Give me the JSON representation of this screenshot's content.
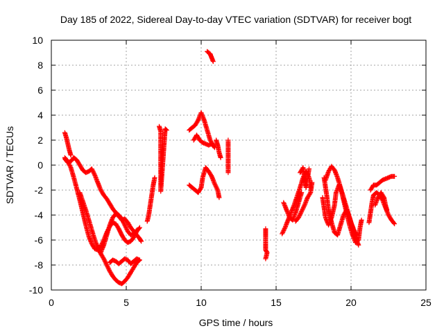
{
  "chart_data": {
    "type": "scatter",
    "title": "Day 185 of 2022, Sidereal Day-to-day VTEC variation (SDTVAR) for receiver bogt",
    "xlabel": "GPS time / hours",
    "ylabel": "SDTVAR / TECUs",
    "xlim": [
      0,
      25
    ],
    "ylim": [
      -10,
      10
    ],
    "xticks": [
      0,
      5,
      10,
      15,
      20,
      25
    ],
    "yticks": [
      -10,
      -8,
      -6,
      -4,
      -2,
      0,
      2,
      4,
      6,
      8,
      10
    ],
    "grid": true,
    "marker": "+",
    "color": "#ff0000",
    "series": [
      {
        "name": "bogt",
        "tracks": [
          [
            [
              0.9,
              2.6
            ],
            [
              1.0,
              2.2
            ],
            [
              1.1,
              1.7
            ],
            [
              1.2,
              1.2
            ],
            [
              1.3,
              0.8
            ]
          ],
          [
            [
              0.9,
              0.6
            ],
            [
              1.1,
              0.3
            ],
            [
              1.3,
              -0.2
            ],
            [
              1.5,
              -1.0
            ],
            [
              1.7,
              -1.9
            ],
            [
              1.9,
              -2.8
            ],
            [
              2.1,
              -3.8
            ],
            [
              2.3,
              -4.8
            ],
            [
              2.5,
              -5.7
            ],
            [
              2.7,
              -6.3
            ],
            [
              2.9,
              -6.7
            ],
            [
              3.1,
              -6.8
            ],
            [
              3.3,
              -6.5
            ],
            [
              3.5,
              -6.0
            ],
            [
              3.7,
              -5.4
            ],
            [
              3.9,
              -4.9
            ],
            [
              4.1,
              -4.6
            ],
            [
              4.3,
              -4.7
            ],
            [
              4.5,
              -5.1
            ],
            [
              4.7,
              -5.6
            ],
            [
              4.9,
              -6.0
            ],
            [
              5.1,
              -6.2
            ],
            [
              5.3,
              -6.1
            ],
            [
              5.5,
              -5.8
            ],
            [
              5.7,
              -5.3
            ],
            [
              5.9,
              -5.0
            ]
          ],
          [
            [
              0.9,
              0.5
            ],
            [
              1.1,
              0.2
            ],
            [
              1.3,
              0.3
            ],
            [
              1.5,
              0.6
            ],
            [
              1.7,
              0.4
            ],
            [
              1.9,
              0.0
            ],
            [
              2.1,
              -0.4
            ],
            [
              2.3,
              -0.6
            ],
            [
              2.5,
              -0.5
            ],
            [
              2.7,
              -0.3
            ],
            [
              2.9,
              -0.8
            ],
            [
              3.1,
              -1.4
            ],
            [
              3.3,
              -2.0
            ],
            [
              3.5,
              -2.4
            ],
            [
              3.7,
              -2.7
            ],
            [
              3.9,
              -3.1
            ],
            [
              4.1,
              -3.5
            ],
            [
              4.3,
              -3.8
            ],
            [
              4.5,
              -4.0
            ],
            [
              4.7,
              -4.3
            ],
            [
              4.9,
              -4.8
            ],
            [
              5.1,
              -5.3
            ],
            [
              5.3,
              -5.6
            ],
            [
              5.5,
              -5.5
            ],
            [
              5.7,
              -5.2
            ]
          ],
          [
            [
              1.9,
              -2.2
            ],
            [
              2.1,
              -2.9
            ],
            [
              2.3,
              -3.6
            ],
            [
              2.5,
              -4.4
            ],
            [
              2.7,
              -5.2
            ],
            [
              2.9,
              -6.0
            ],
            [
              3.1,
              -6.6
            ],
            [
              3.3,
              -7.1
            ],
            [
              3.5,
              -7.5
            ],
            [
              3.7,
              -8.0
            ],
            [
              3.9,
              -8.5
            ],
            [
              4.1,
              -8.9
            ],
            [
              4.3,
              -9.2
            ],
            [
              4.5,
              -9.4
            ],
            [
              4.7,
              -9.5
            ],
            [
              4.9,
              -9.3
            ],
            [
              5.1,
              -9.0
            ],
            [
              5.3,
              -8.6
            ],
            [
              5.5,
              -8.2
            ],
            [
              5.7,
              -7.8
            ],
            [
              5.9,
              -7.6
            ]
          ],
          [
            [
              3.9,
              -7.8
            ],
            [
              4.1,
              -7.6
            ],
            [
              4.3,
              -7.7
            ],
            [
              4.5,
              -7.9
            ],
            [
              4.7,
              -7.7
            ],
            [
              4.9,
              -7.5
            ],
            [
              5.1,
              -7.6
            ],
            [
              5.3,
              -7.9
            ],
            [
              5.5,
              -7.7
            ],
            [
              5.7,
              -7.5
            ],
            [
              5.9,
              -7.6
            ]
          ],
          [
            [
              3.3,
              -7.0
            ],
            [
              3.5,
              -6.4
            ],
            [
              3.7,
              -5.6
            ],
            [
              3.9,
              -4.8
            ],
            [
              4.1,
              -4.2
            ],
            [
              4.3,
              -3.9
            ],
            [
              4.5,
              -4.1
            ],
            [
              4.7,
              -4.4
            ],
            [
              4.9,
              -4.3
            ],
            [
              5.1,
              -4.6
            ],
            [
              5.3,
              -5.0
            ],
            [
              5.5,
              -5.3
            ],
            [
              5.7,
              -5.6
            ],
            [
              5.9,
              -5.9
            ],
            [
              6.0,
              -6.1
            ]
          ],
          [
            [
              6.4,
              -4.5
            ],
            [
              6.5,
              -4.0
            ],
            [
              6.6,
              -3.2
            ],
            [
              6.7,
              -2.4
            ],
            [
              6.8,
              -1.6
            ],
            [
              6.9,
              -1.0
            ]
          ],
          [
            [
              7.2,
              3.1
            ],
            [
              7.3,
              2.7
            ],
            [
              7.3,
              1.6
            ],
            [
              7.3,
              -2.1
            ],
            [
              7.6,
              2.9
            ],
            [
              7.7,
              2.8
            ]
          ],
          [
            [
              9.2,
              2.8
            ],
            [
              9.4,
              3.0
            ],
            [
              9.6,
              3.2
            ],
            [
              9.8,
              3.6
            ],
            [
              10.0,
              4.2
            ],
            [
              10.2,
              3.6
            ],
            [
              10.4,
              2.8
            ],
            [
              10.6,
              2.0
            ],
            [
              10.8,
              1.6
            ]
          ],
          [
            [
              9.2,
              -1.6
            ],
            [
              9.4,
              -1.8
            ],
            [
              9.6,
              -2.0
            ],
            [
              9.8,
              -2.2
            ],
            [
              10.0,
              -1.8
            ],
            [
              10.1,
              -1.0
            ],
            [
              10.3,
              -0.2
            ],
            [
              10.5,
              -0.5
            ],
            [
              10.7,
              -0.9
            ],
            [
              10.9,
              -1.5
            ],
            [
              11.1,
              -2.0
            ],
            [
              11.2,
              -2.6
            ]
          ],
          [
            [
              9.5,
              2.0
            ],
            [
              9.7,
              2.4
            ],
            [
              9.9,
              2.0
            ],
            [
              10.1,
              1.8
            ],
            [
              10.3,
              1.7
            ],
            [
              10.5,
              1.6
            ],
            [
              10.7,
              1.7
            ],
            [
              10.9,
              1.4
            ]
          ],
          [
            [
              10.4,
              9.1
            ],
            [
              10.6,
              8.9
            ],
            [
              10.7,
              8.6
            ],
            [
              10.8,
              8.3
            ]
          ],
          [
            [
              11.0,
              2.0
            ],
            [
              11.1,
              1.6
            ],
            [
              11.2,
              1.0
            ],
            [
              11.3,
              0.6
            ]
          ],
          [
            [
              11.8,
              2.0
            ],
            [
              11.8,
              1.8
            ],
            [
              11.8,
              -0.6
            ]
          ],
          [
            [
              14.3,
              -5.1
            ],
            [
              14.3,
              -5.6
            ],
            [
              14.3,
              -6.2
            ],
            [
              14.3,
              -6.8
            ],
            [
              14.4,
              -7.0
            ],
            [
              14.3,
              -7.5
            ]
          ],
          [
            [
              15.4,
              -5.5
            ],
            [
              15.6,
              -5.0
            ],
            [
              15.8,
              -4.4
            ],
            [
              16.0,
              -3.8
            ],
            [
              16.2,
              -3.2
            ],
            [
              16.4,
              -2.5
            ],
            [
              16.6,
              -1.8
            ],
            [
              16.8,
              -1.0
            ],
            [
              17.0,
              -0.5
            ],
            [
              17.2,
              -1.0
            ],
            [
              17.3,
              -1.8
            ]
          ],
          [
            [
              15.5,
              -3.0
            ],
            [
              15.7,
              -3.6
            ],
            [
              15.9,
              -4.2
            ],
            [
              16.1,
              -4.4
            ],
            [
              16.3,
              -3.8
            ],
            [
              16.5,
              -3.0
            ],
            [
              16.7,
              -2.2
            ]
          ],
          [
            [
              16.3,
              -4.5
            ],
            [
              16.5,
              -4.2
            ],
            [
              16.7,
              -3.7
            ],
            [
              16.9,
              -3.2
            ],
            [
              17.1,
              -2.6
            ],
            [
              17.3,
              -2.2
            ],
            [
              17.4,
              -1.4
            ]
          ],
          [
            [
              16.6,
              -0.6
            ],
            [
              16.8,
              -0.2
            ],
            [
              16.9,
              -1.2
            ],
            [
              17.0,
              -1.8
            ],
            [
              17.1,
              -1.0
            ],
            [
              17.2,
              -0.3
            ]
          ],
          [
            [
              18.3,
              -1.2
            ],
            [
              18.5,
              -0.5
            ],
            [
              18.7,
              -0.1
            ],
            [
              18.9,
              -0.4
            ],
            [
              19.1,
              -1.0
            ],
            [
              19.3,
              -1.8
            ],
            [
              19.5,
              -2.8
            ],
            [
              19.7,
              -3.8
            ],
            [
              19.9,
              -4.8
            ],
            [
              20.1,
              -5.6
            ],
            [
              20.3,
              -6.2
            ],
            [
              20.5,
              -6.0
            ],
            [
              20.6,
              -5.0
            ],
            [
              20.7,
              -4.4
            ]
          ],
          [
            [
              18.2,
              -1.0
            ],
            [
              18.3,
              -1.8
            ],
            [
              18.4,
              -2.6
            ],
            [
              18.5,
              -3.6
            ],
            [
              18.7,
              -4.6
            ],
            [
              18.9,
              -5.4
            ],
            [
              19.1,
              -5.6
            ],
            [
              19.3,
              -4.8
            ],
            [
              19.5,
              -4.0
            ],
            [
              19.7,
              -3.6
            ],
            [
              19.9,
              -4.2
            ],
            [
              20.1,
              -5.0
            ],
            [
              20.3,
              -5.8
            ],
            [
              20.5,
              -6.4
            ]
          ],
          [
            [
              18.1,
              -2.6
            ],
            [
              18.2,
              -3.4
            ],
            [
              18.3,
              -4.2
            ],
            [
              18.5,
              -4.8
            ],
            [
              18.7,
              -4.2
            ],
            [
              18.9,
              -3.2
            ],
            [
              19.0,
              -2.2
            ],
            [
              19.2,
              -1.6
            ],
            [
              19.4,
              -2.2
            ],
            [
              19.6,
              -3.0
            ],
            [
              19.8,
              -3.8
            ],
            [
              20.0,
              -4.6
            ],
            [
              20.2,
              -5.2
            ],
            [
              20.4,
              -5.6
            ]
          ],
          [
            [
              21.2,
              -4.6
            ],
            [
              21.3,
              -3.8
            ],
            [
              21.4,
              -3.0
            ],
            [
              21.5,
              -2.4
            ],
            [
              21.7,
              -2.2
            ],
            [
              21.9,
              -2.4
            ],
            [
              22.1,
              -2.8
            ],
            [
              22.3,
              -3.4
            ],
            [
              22.5,
              -4.0
            ],
            [
              22.7,
              -4.4
            ],
            [
              22.9,
              -4.7
            ]
          ],
          [
            [
              21.3,
              -2.0
            ],
            [
              21.5,
              -1.6
            ],
            [
              21.7,
              -1.6
            ],
            [
              21.9,
              -1.4
            ],
            [
              22.1,
              -1.2
            ],
            [
              22.3,
              -1.1
            ],
            [
              22.5,
              -1.0
            ],
            [
              22.7,
              -0.9
            ],
            [
              22.9,
              -0.9
            ]
          ],
          [
            [
              21.6,
              -3.2
            ],
            [
              21.8,
              -2.6
            ],
            [
              22.0,
              -2.2
            ],
            [
              22.2,
              -2.6
            ],
            [
              22.3,
              -3.2
            ],
            [
              22.4,
              -3.6
            ]
          ]
        ]
      }
    ]
  }
}
